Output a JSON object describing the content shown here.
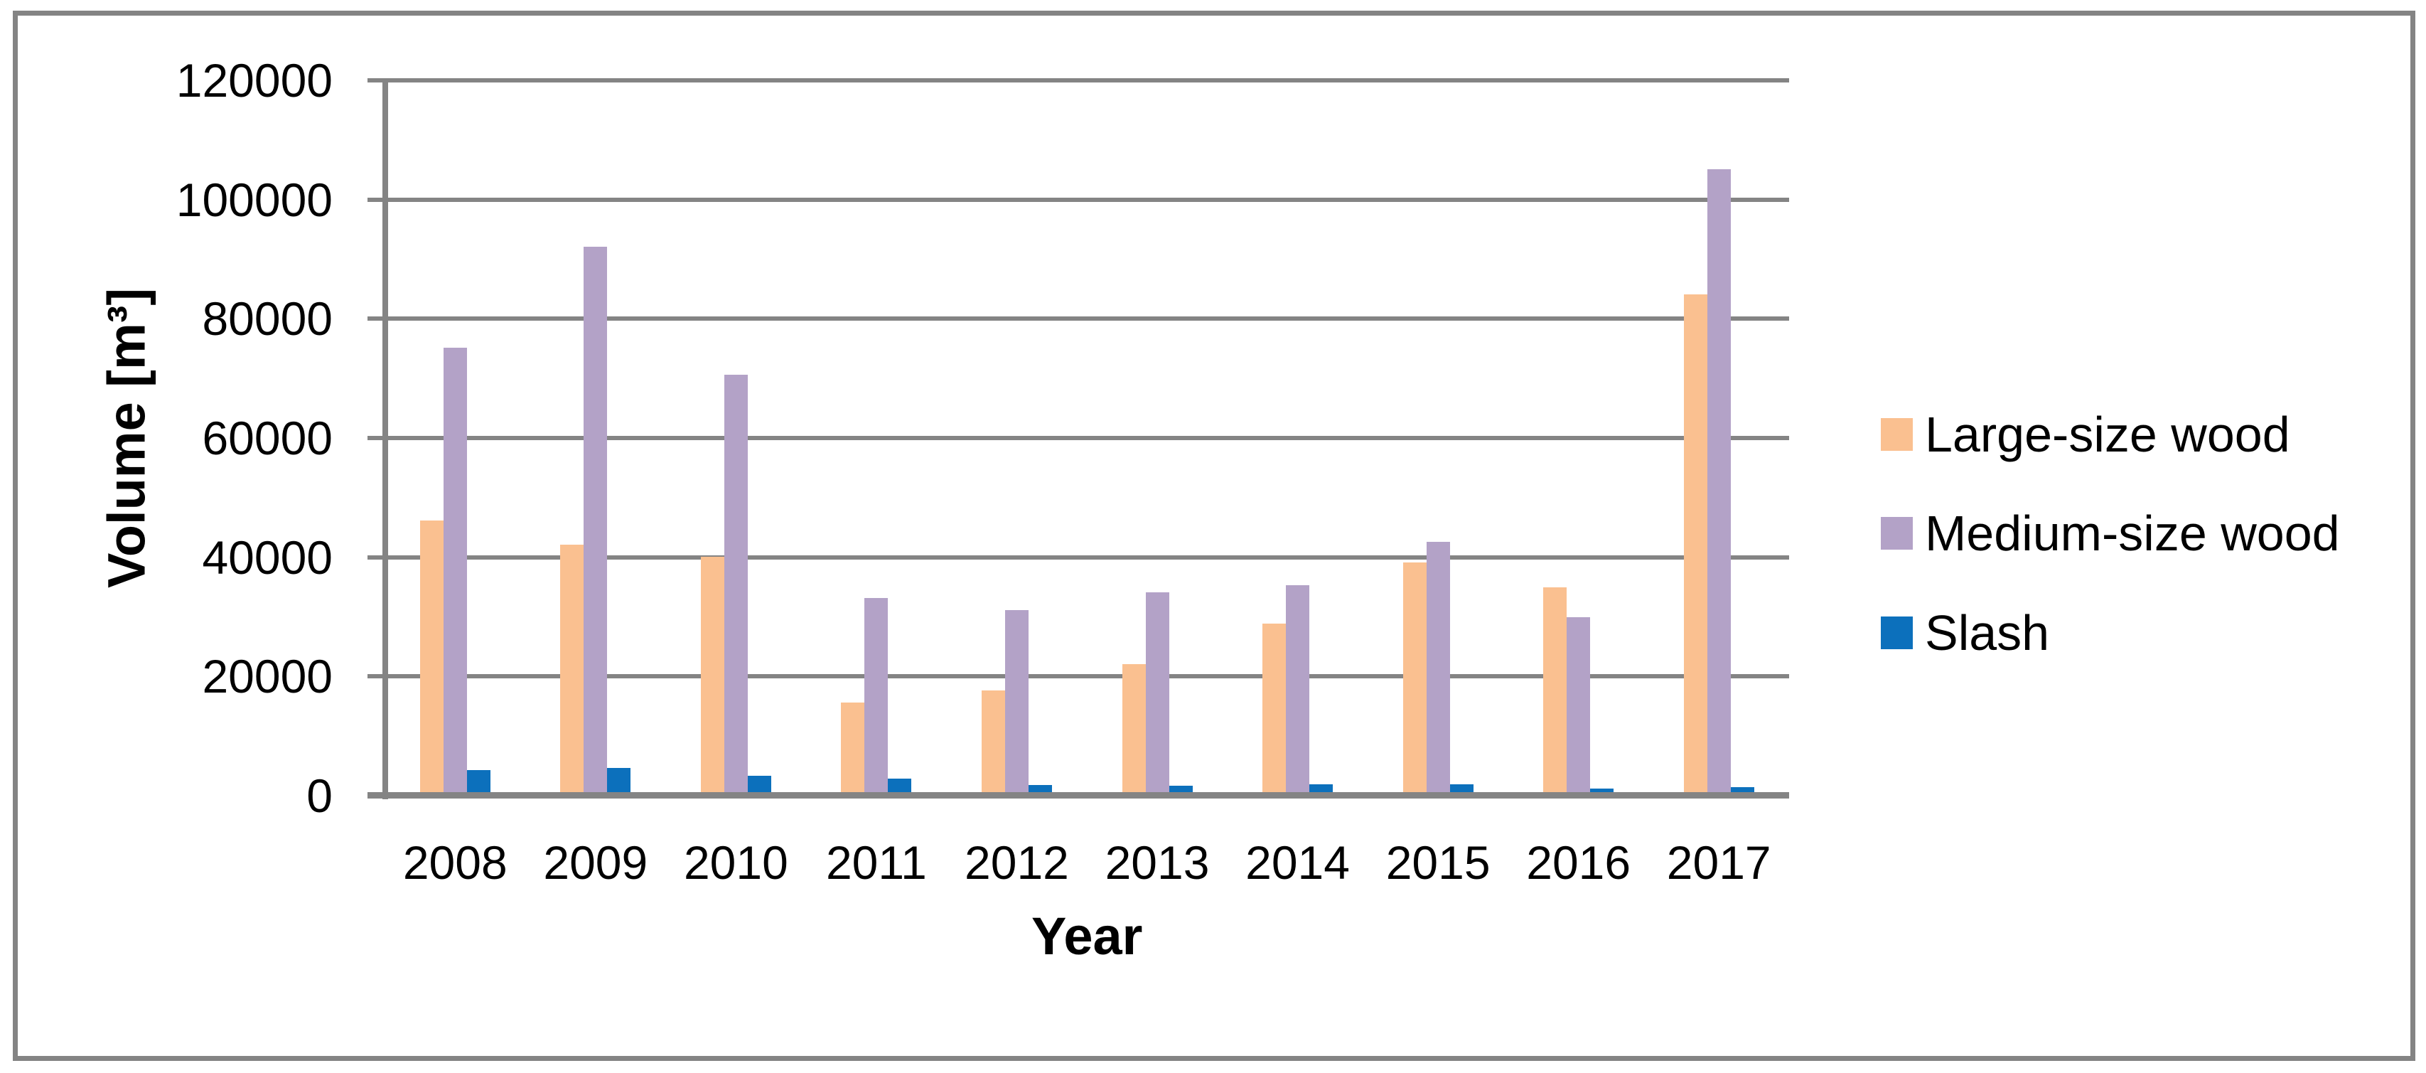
{
  "chart_data": {
    "type": "bar",
    "title": "",
    "categories": [
      "2008",
      "2009",
      "2010",
      "2011",
      "2012",
      "2013",
      "2014",
      "2015",
      "2016",
      "2017"
    ],
    "series": [
      {
        "name": "Large-size wood",
        "color": "#FAC090",
        "values": [
          46000,
          42000,
          40000,
          15500,
          17500,
          22000,
          28800,
          39000,
          34800,
          84000
        ]
      },
      {
        "name": "Medium-size wood",
        "color": "#B3A2C7",
        "values": [
          75000,
          92000,
          70500,
          33000,
          31000,
          34000,
          35200,
          42500,
          29800,
          105000
        ]
      },
      {
        "name": "Slash",
        "color": "#0C70BC",
        "values": [
          4200,
          4500,
          3200,
          2700,
          1700,
          1600,
          1800,
          1800,
          1100,
          1300
        ]
      }
    ],
    "xlabel": "Year",
    "ylabel": "Volume [m³]",
    "ylim": [
      0,
      120000
    ],
    "ytick_step": 20000,
    "ytick_labels": [
      "0",
      "20000",
      "40000",
      "60000",
      "80000",
      "100000",
      "120000"
    ],
    "grid": true,
    "legend_position": "right",
    "axis_color": "#848484",
    "plot_background": "#ffffff"
  }
}
